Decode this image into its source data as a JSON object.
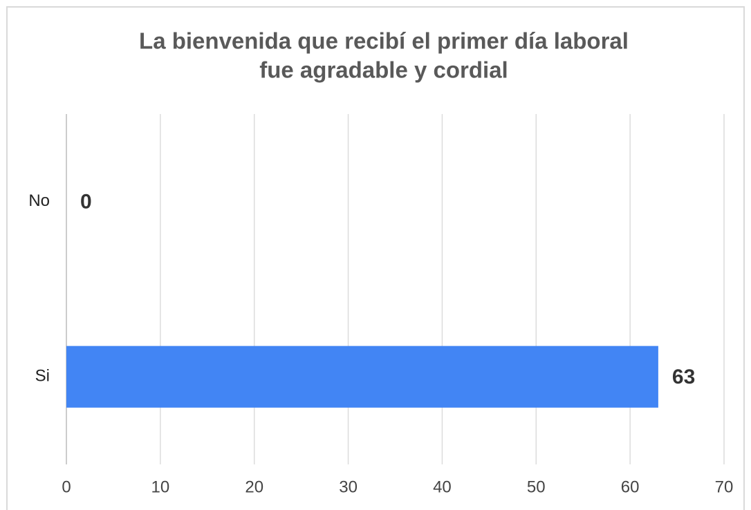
{
  "chart_data": {
    "type": "hbar",
    "title": [
      "La bienvenida que recibí el primer día laboral",
      "fue agradable y  cordial"
    ],
    "categories": [
      "No",
      "Si"
    ],
    "values": [
      0,
      63
    ],
    "color": "#4285f4",
    "xlim": [
      0,
      70
    ],
    "xticks": [
      0,
      10,
      20,
      30,
      40,
      50,
      60,
      70
    ],
    "grid": true
  }
}
